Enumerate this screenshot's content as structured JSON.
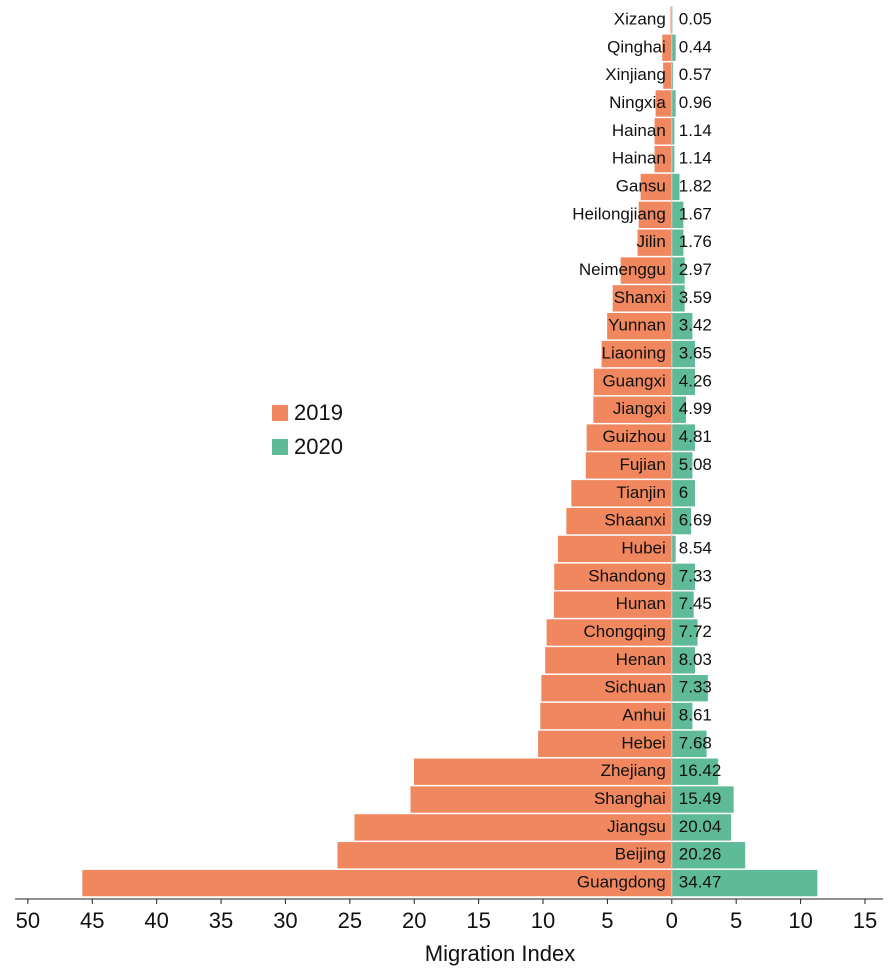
{
  "chart_data": {
    "type": "butterfly-bar",
    "x_label": "Migration Index",
    "categories": [
      "Xizang",
      "Qinghai",
      "Xinjiang",
      "Ningxia",
      "Hainan",
      "Hainan",
      "Gansu",
      "Heilongjiang",
      "Jilin",
      "Neimenggu",
      "Shanxi",
      "Yunnan",
      "Liaoning",
      "Guangxi",
      "Jiangxi",
      "Guizhou",
      "Fujian",
      "Tianjin",
      "Shaanxi",
      "Hubei",
      "Shandong",
      "Hunan",
      "Chongqing",
      "Henan",
      "Sichuan",
      "Anhui",
      "Hebei",
      "Zhejiang",
      "Shanghai",
      "Jiangsu",
      "Beijing",
      "Guangdong"
    ],
    "series": [
      {
        "name": "2019",
        "color": "#f0875f",
        "values": [
          -0.1,
          -0.74,
          -0.67,
          -1.26,
          -1.34,
          -1.34,
          -2.42,
          -2.57,
          -2.66,
          -3.97,
          -4.59,
          -5.02,
          -5.45,
          -6.06,
          -6.09,
          -6.61,
          -6.68,
          -7.8,
          -8.19,
          -8.84,
          -9.13,
          -9.15,
          -9.72,
          -9.83,
          -10.13,
          -10.21,
          -10.38,
          -20.02,
          -20.29,
          -24.64,
          -25.96,
          -45.77
        ]
      },
      {
        "name": "2020",
        "color": "#5fba98",
        "values": [
          0.05,
          0.3,
          0.1,
          0.3,
          0.2,
          0.2,
          0.6,
          0.9,
          0.9,
          1.0,
          1.0,
          1.6,
          1.8,
          1.8,
          1.1,
          1.8,
          1.6,
          1.8,
          1.5,
          0.3,
          1.8,
          1.7,
          2.0,
          1.8,
          2.8,
          1.6,
          2.7,
          3.6,
          4.8,
          4.6,
          5.7,
          11.3
        ]
      }
    ],
    "differences": [
      0.05,
      0.44,
      0.57,
      0.96,
      1.14,
      1.14,
      1.82,
      1.67,
      1.76,
      2.97,
      3.59,
      3.42,
      3.65,
      4.26,
      4.99,
      4.81,
      5.08,
      6,
      6.69,
      8.54,
      7.33,
      7.45,
      7.72,
      8.03,
      7.33,
      8.61,
      7.68,
      16.42,
      15.49,
      20.04,
      20.26,
      34.47
    ],
    "xlim": [
      -51,
      16.4
    ],
    "xticks": [
      {
        "value": -50,
        "label": "50"
      },
      {
        "value": -45,
        "label": "45"
      },
      {
        "value": -40,
        "label": "40"
      },
      {
        "value": -35,
        "label": "35"
      },
      {
        "value": -30,
        "label": "30"
      },
      {
        "value": -25,
        "label": "25"
      },
      {
        "value": -20,
        "label": "20"
      },
      {
        "value": -15,
        "label": "15"
      },
      {
        "value": -10,
        "label": "10"
      },
      {
        "value": -5,
        "label": "5"
      },
      0,
      5,
      10,
      15
    ],
    "legend": "left"
  }
}
